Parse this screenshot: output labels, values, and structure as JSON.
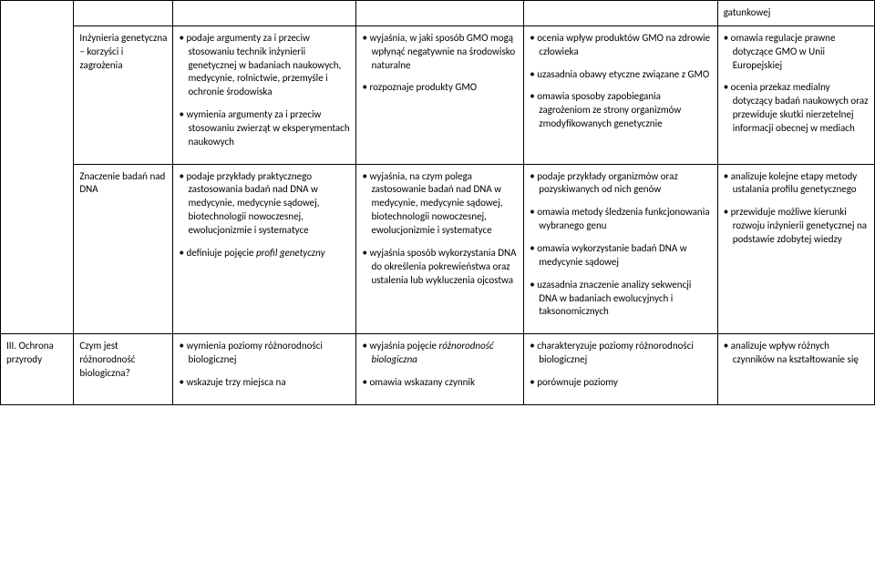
{
  "row0": {
    "c5": "gatunkowej"
  },
  "row1": {
    "c1": "Inżynieria genetyczna – korzyści i zagrożenia",
    "c2": [
      "podaje argumenty za i przeciw stosowaniu technik inżynierii genetycznej w badaniach naukowych, medycynie, rolnictwie, przemyśle i ochronie środowiska",
      "wymienia argumenty za i przeciw stosowaniu zwierząt w eksperymentach naukowych"
    ],
    "c3": [
      "wyjaśnia, w jaki sposób GMO mogą wpłynąć negatywnie na środowisko naturalne",
      "rozpoznaje produkty GMO"
    ],
    "c4": [
      "ocenia wpływ produktów GMO na zdrowie człowieka",
      "uzasadnia obawy etyczne związane z GMO",
      "omawia sposoby zapobiegania zagrożeniom ze strony organizmów zmodyfikowanych genetycznie"
    ],
    "c5": [
      "omawia regulacje prawne dotyczące GMO w Unii Europejskiej",
      "ocenia przekaz medialny dotyczący badań naukowych oraz przewiduje skutki nierzetelnej informacji obecnej w mediach"
    ]
  },
  "row2": {
    "c1": "Znaczenie badań nad DNA",
    "c2a": "podaje przykłady praktycznego zastosowania badań nad DNA w medycynie, medycynie sądowej, biotechnologii nowoczesnej, ewolucjonizmie i systematyce",
    "c2b_pre": "definiuje pojęcie ",
    "c2b_it": "profil genetyczny",
    "c3": [
      "wyjaśnia, na czym polega zastosowanie badań nad DNA w medycynie, medycynie sądowej, biotechnologii nowoczesnej, ewolucjonizmie i systematyce",
      "wyjaśnia sposób wykorzystania DNA do określenia pokrewieństwa oraz ustalenia lub wykluczenia ojcostwa"
    ],
    "c4": [
      "podaje przykłady organizmów oraz pozyskiwanych od nich genów",
      "omawia metody śledzenia funkcjonowania wybranego genu",
      "omawia wykorzystanie badań DNA w medycynie sądowej",
      "uzasadnia znaczenie analizy sekwencji DNA w badaniach ewolucyjnych i taksonomicznych"
    ],
    "c5": [
      "analizuje kolejne etapy metody ustalania profilu genetycznego",
      "przewiduje możliwe kierunki rozwoju inżynierii genetycznej na podstawie zdobytej wiedzy"
    ]
  },
  "row3": {
    "c0": "III. Ochrona przyrody",
    "c1": "Czym jest różnorodność biologiczna?",
    "c2": [
      "wymienia poziomy różnorodności biologicznej",
      "wskazuje trzy miejsca na"
    ],
    "c3a_pre": "wyjaśnia pojęcie ",
    "c3a_it": "różnorodność biologiczna",
    "c3b": "omawia wskazany czynnik",
    "c4": [
      "charakteryzuje poziomy różnorodności biologicznej",
      "porównuje poziomy"
    ],
    "c5": [
      "analizuje wpływ różnych czynników na kształtowanie się"
    ]
  }
}
